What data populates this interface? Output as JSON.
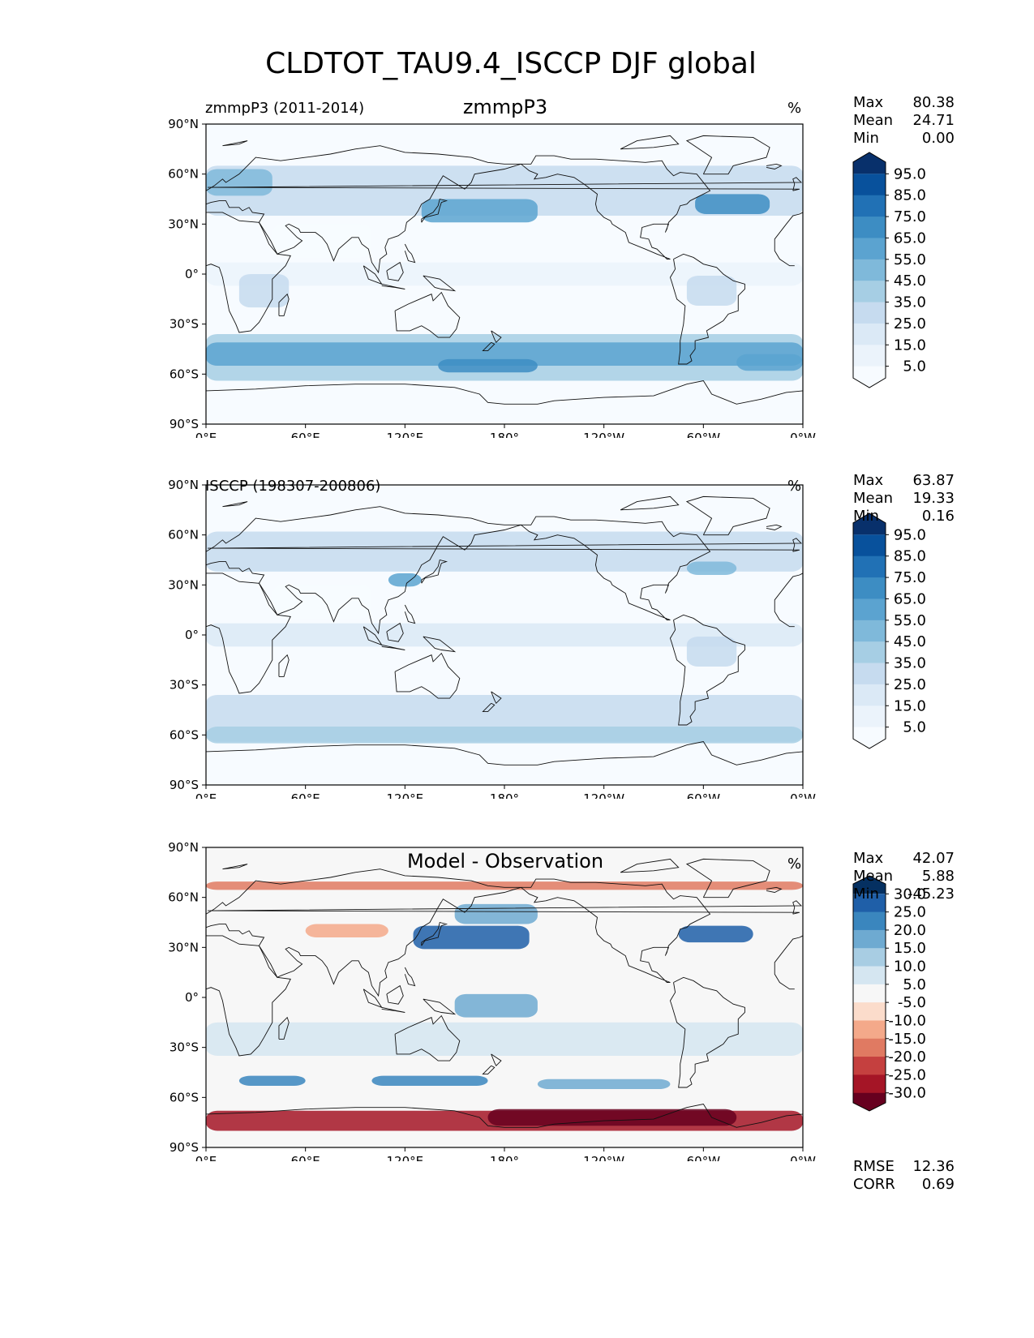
{
  "title": "CLDTOT_TAU9.4_ISCCP DJF global",
  "lat_labels": [
    "90°N",
    "60°N",
    "30°N",
    "0°",
    "30°S",
    "60°S",
    "90°S"
  ],
  "lon_labels": [
    "0°E",
    "60°E",
    "120°E",
    "180°",
    "120°W",
    "60°W",
    "0°W"
  ],
  "panels": [
    {
      "left_label": "zmmpP3 (2011-2014)",
      "center_label": "zmmpP3",
      "unit": "%",
      "stats": [
        {
          "name": "Max",
          "value": "80.38"
        },
        {
          "name": "Mean",
          "value": "24.71"
        },
        {
          "name": "Min",
          "value": "0.00"
        }
      ],
      "colorbar": {
        "labels": [
          "95.0",
          "85.0",
          "75.0",
          "65.0",
          "55.0",
          "45.0",
          "35.0",
          "25.0",
          "15.0",
          "5.0"
        ],
        "colors": [
          "#08306b",
          "#08519c",
          "#2171b5",
          "#3d8dc3",
          "#5ba3d0",
          "#7fb9da",
          "#a6cee4",
          "#c6dbef",
          "#dbe9f6",
          "#ebf3fb",
          "#f7fbff"
        ]
      }
    },
    {
      "left_label": "ISCCP (198307-200806)",
      "center_label": "",
      "unit": "%",
      "stats": [
        {
          "name": "Max",
          "value": "63.87"
        },
        {
          "name": "Mean",
          "value": "19.33"
        },
        {
          "name": "Min",
          "value": "0.16"
        }
      ],
      "colorbar": {
        "labels": [
          "95.0",
          "85.0",
          "75.0",
          "65.0",
          "55.0",
          "45.0",
          "35.0",
          "25.0",
          "15.0",
          "5.0"
        ],
        "colors": [
          "#08306b",
          "#08519c",
          "#2171b5",
          "#3d8dc3",
          "#5ba3d0",
          "#7fb9da",
          "#a6cee4",
          "#c6dbef",
          "#dbe9f6",
          "#ebf3fb",
          "#f7fbff"
        ]
      }
    },
    {
      "left_label": "",
      "center_label": "Model - Observation",
      "unit": "%",
      "stats": [
        {
          "name": "Max",
          "value": "42.07"
        },
        {
          "name": "Mean",
          "value": "5.88"
        },
        {
          "name": "Min",
          "value": "-45.23"
        }
      ],
      "extra_stats": [
        {
          "name": "RMSE",
          "value": "12.36"
        },
        {
          "name": "CORR",
          "value": "0.69"
        }
      ],
      "colorbar": {
        "labels": [
          "30.0",
          "25.0",
          "20.0",
          "15.0",
          "10.0",
          "5.0",
          "-5.0",
          "-10.0",
          "-15.0",
          "-20.0",
          "-25.0",
          "-30.0"
        ],
        "colors": [
          "#053061",
          "#1f5fa8",
          "#3a86be",
          "#6eaad1",
          "#a8cde3",
          "#d5e6f1",
          "#f7f7f7",
          "#fbdccb",
          "#f4a98a",
          "#e07a62",
          "#c5403f",
          "#a51526",
          "#67001f"
        ]
      }
    }
  ]
}
